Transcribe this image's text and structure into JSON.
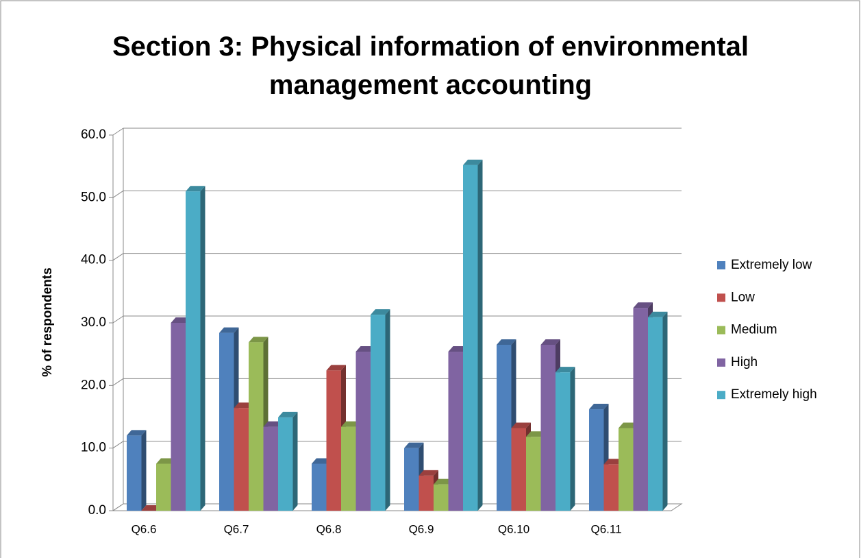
{
  "chart_data": {
    "type": "bar3d",
    "title": "Section 3: Physical information of environmental management accounting",
    "y_label": "% of respondents",
    "categories": [
      "Q6.6",
      "Q6.7",
      "Q6.8",
      "Q6.9",
      "Q6.10",
      "Q6.11"
    ],
    "series": [
      {
        "name": "Extremely low",
        "color": "#4F81BD",
        "values": [
          12.0,
          28.4,
          7.5,
          10.0,
          26.5,
          16.2
        ]
      },
      {
        "name": "Low",
        "color": "#C0504D",
        "values": [
          0.0,
          16.4,
          22.4,
          5.6,
          13.2,
          7.4
        ]
      },
      {
        "name": "Medium",
        "color": "#9BBB59",
        "values": [
          7.5,
          26.9,
          13.4,
          4.2,
          11.8,
          13.2
        ]
      },
      {
        "name": "High",
        "color": "#8064A2",
        "values": [
          30.0,
          13.4,
          25.4,
          25.4,
          26.5,
          32.4
        ]
      },
      {
        "name": "Extremely high",
        "color": "#4BACC6",
        "values": [
          51.0,
          14.9,
          31.3,
          55.2,
          22.1,
          30.9
        ]
      }
    ],
    "ylim": [
      0,
      60
    ],
    "yticks": [
      {
        "value": 0,
        "label": "0.0"
      },
      {
        "value": 10,
        "label": "10.0"
      },
      {
        "value": 20,
        "label": "20.0"
      },
      {
        "value": 30,
        "label": "30.0"
      },
      {
        "value": 40,
        "label": "40.0"
      },
      {
        "value": 50,
        "label": "50.0"
      },
      {
        "value": 60,
        "label": "60.0"
      }
    ],
    "grid": true,
    "legend": "right"
  }
}
